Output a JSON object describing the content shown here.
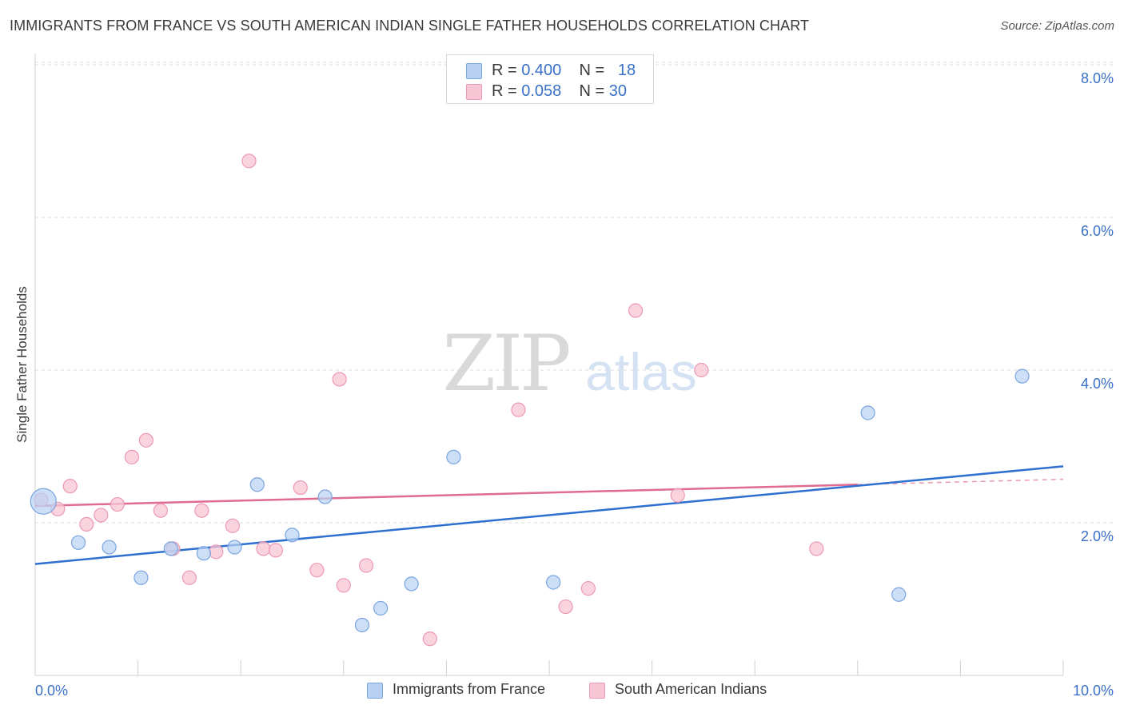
{
  "header": {
    "title": "IMMIGRANTS FROM FRANCE VS SOUTH AMERICAN INDIAN SINGLE FATHER HOUSEHOLDS CORRELATION CHART",
    "source": "Source: ZipAtlas.com"
  },
  "watermark": {
    "zip": "ZIP",
    "atlas": "atlas"
  },
  "legend_top": {
    "rows": [
      {
        "r_label": "R =",
        "r_value": "0.400",
        "n_label": "N =",
        "n_value": "18"
      },
      {
        "r_label": "R =",
        "r_value": "0.058",
        "n_label": "N =",
        "n_value": "30"
      }
    ]
  },
  "legend_bottom": {
    "items": [
      "Immigrants from France",
      "South American Indians"
    ]
  },
  "colors": {
    "blue_fill": "#b8d1f3",
    "blue_stroke": "#7aa5e0",
    "blue_line": "#2f6fd0",
    "pink_fill": "#f7c6d4",
    "pink_stroke": "#ec99b3",
    "pink_line": "#e06b93",
    "axis_text": "#3a70c8",
    "grid": "#dcdcdc"
  },
  "chart_data": {
    "type": "scatter",
    "title": "IMMIGRANTS FROM FRANCE VS SOUTH AMERICAN INDIAN SINGLE FATHER HOUSEHOLDS CORRELATION CHART",
    "xlabel": "",
    "ylabel": "Single Father Households",
    "xlim": [
      0,
      10
    ],
    "ylim": [
      0,
      8.2
    ],
    "x_tick_labels": [
      "0.0%",
      "10.0%"
    ],
    "y_ticks": [
      2,
      4,
      6,
      8
    ],
    "y_tick_labels": [
      "2.0%",
      "4.0%",
      "6.0%",
      "8.0%"
    ],
    "grid": "horizontal dashed",
    "legend_position": "top-center",
    "series": [
      {
        "name": "Immigrants from France",
        "color": "blue",
        "points": [
          [
            0.08,
            2.28,
            "large"
          ],
          [
            0.42,
            1.74
          ],
          [
            0.72,
            1.68
          ],
          [
            1.03,
            1.28
          ],
          [
            1.32,
            1.66
          ],
          [
            1.64,
            1.6
          ],
          [
            1.94,
            1.68
          ],
          [
            2.16,
            2.5
          ],
          [
            2.5,
            1.84
          ],
          [
            2.82,
            2.34
          ],
          [
            3.18,
            0.66
          ],
          [
            3.36,
            0.88
          ],
          [
            3.66,
            1.2
          ],
          [
            4.07,
            2.86
          ],
          [
            5.04,
            1.22
          ],
          [
            8.1,
            3.44
          ],
          [
            8.4,
            1.06
          ],
          [
            9.6,
            3.92
          ]
        ],
        "trend": {
          "x": [
            0,
            10
          ],
          "y": [
            1.46,
            2.74
          ]
        }
      },
      {
        "name": "South American Indians",
        "color": "pink",
        "points": [
          [
            0.06,
            2.3
          ],
          [
            0.22,
            2.18
          ],
          [
            0.34,
            2.48
          ],
          [
            0.5,
            1.98
          ],
          [
            0.64,
            2.1
          ],
          [
            0.8,
            2.24
          ],
          [
            0.94,
            2.86
          ],
          [
            1.08,
            3.08
          ],
          [
            1.22,
            2.16
          ],
          [
            1.34,
            1.66
          ],
          [
            1.5,
            1.28
          ],
          [
            1.62,
            2.16
          ],
          [
            1.76,
            1.62
          ],
          [
            1.92,
            1.96
          ],
          [
            2.08,
            6.74
          ],
          [
            2.22,
            1.66
          ],
          [
            2.34,
            1.64
          ],
          [
            2.58,
            2.46
          ],
          [
            2.74,
            1.38
          ],
          [
            2.96,
            3.88
          ],
          [
            3.0,
            1.18
          ],
          [
            3.22,
            1.44
          ],
          [
            3.84,
            0.48
          ],
          [
            5.16,
            0.9
          ],
          [
            5.38,
            1.14
          ],
          [
            5.84,
            4.78
          ],
          [
            6.25,
            2.36
          ],
          [
            6.48,
            4.0
          ],
          [
            7.6,
            1.66
          ],
          [
            4.7,
            3.48
          ]
        ],
        "trend": {
          "x": [
            0,
            8
          ],
          "y": [
            2.22,
            2.5
          ]
        },
        "trend_extension": {
          "x": [
            8,
            10
          ],
          "y": [
            2.5,
            2.57
          ]
        }
      }
    ]
  }
}
